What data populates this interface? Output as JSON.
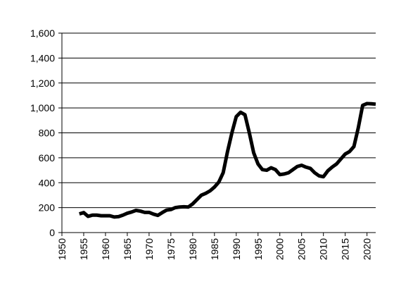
{
  "chart_data": {
    "type": "line",
    "x": [
      1954,
      1955,
      1956,
      1957,
      1958,
      1959,
      1960,
      1961,
      1962,
      1963,
      1964,
      1965,
      1966,
      1967,
      1968,
      1969,
      1970,
      1971,
      1972,
      1973,
      1974,
      1975,
      1976,
      1977,
      1978,
      1979,
      1980,
      1981,
      1982,
      1983,
      1984,
      1985,
      1986,
      1987,
      1988,
      1989,
      1990,
      1991,
      1992,
      1993,
      1994,
      1995,
      1996,
      1997,
      1998,
      1999,
      2000,
      2001,
      2002,
      2003,
      2004,
      2005,
      2006,
      2007,
      2008,
      2009,
      2010,
      2011,
      2012,
      2013,
      2014,
      2015,
      2016,
      2017,
      2018,
      2019,
      2020,
      2021,
      2022
    ],
    "series": [
      {
        "color": "#000000",
        "values": [
          150,
          160,
          130,
          140,
          140,
          135,
          135,
          135,
          125,
          128,
          140,
          155,
          165,
          178,
          172,
          162,
          162,
          148,
          138,
          160,
          180,
          185,
          200,
          205,
          207,
          205,
          230,
          265,
          300,
          315,
          335,
          365,
          405,
          480,
          650,
          800,
          930,
          965,
          945,
          800,
          640,
          550,
          505,
          500,
          520,
          505,
          465,
          470,
          480,
          505,
          530,
          540,
          525,
          515,
          480,
          455,
          448,
          495,
          525,
          550,
          590,
          630,
          650,
          690,
          840,
          1020,
          1035,
          1033,
          1030
        ]
      }
    ],
    "xlim": [
      1950,
      2022
    ],
    "xticks": [
      1950,
      1955,
      1960,
      1965,
      1970,
      1975,
      1980,
      1985,
      1990,
      1995,
      2000,
      2005,
      2010,
      2015,
      2020
    ],
    "ylim": [
      0,
      1600
    ],
    "yticks": [
      0,
      200,
      400,
      600,
      800,
      {
        "value": 1000,
        "label": "1,000"
      },
      {
        "value": 1200,
        "label": "1,200"
      },
      {
        "value": 1400,
        "label": "1,400"
      },
      {
        "value": 1600,
        "label": "1,600"
      }
    ],
    "grid": true
  }
}
